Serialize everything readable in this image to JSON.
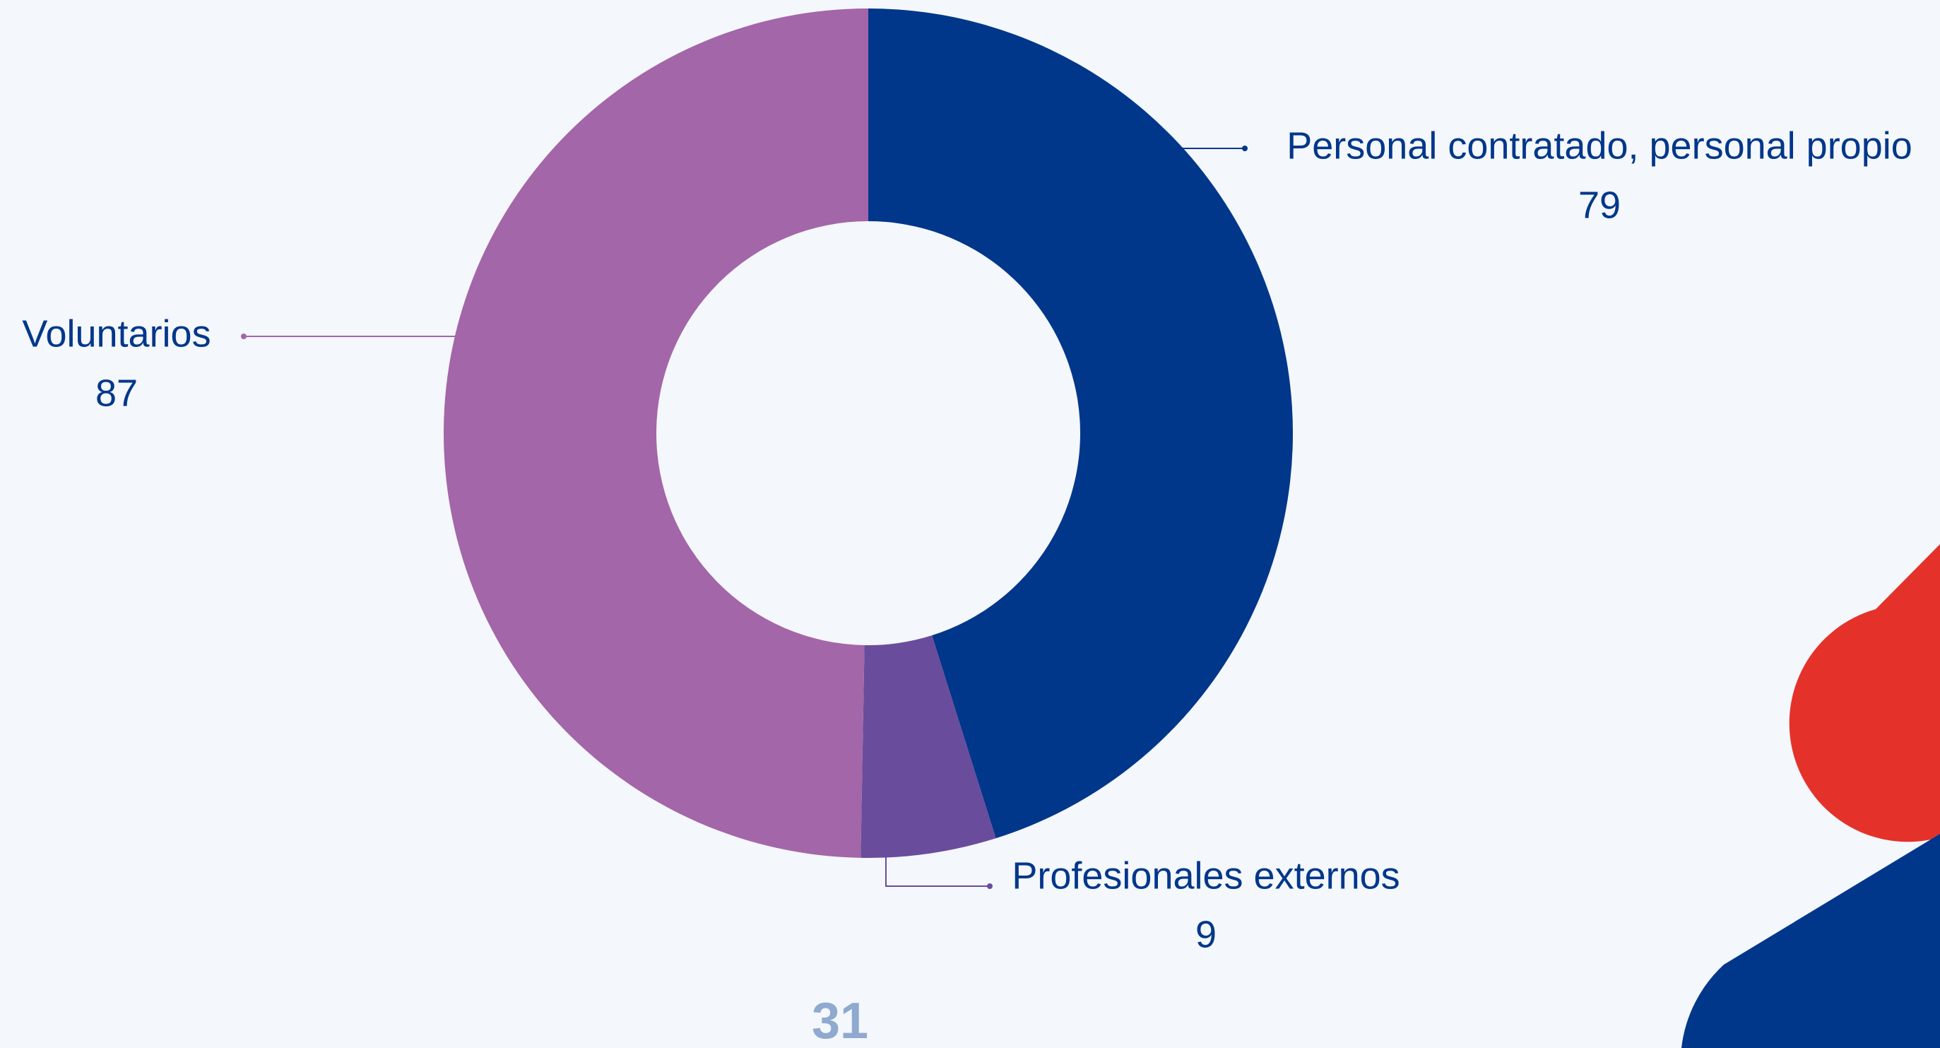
{
  "chart_data": {
    "type": "donut",
    "categories": [
      "Personal contratado, personal propio",
      "Profesionales externos",
      "Voluntarios"
    ],
    "series": [
      {
        "values": [
          79,
          9,
          87
        ],
        "colors": [
          "#00378a",
          "#6a4c9c",
          "#a366a8"
        ]
      }
    ]
  },
  "page_number": "31"
}
